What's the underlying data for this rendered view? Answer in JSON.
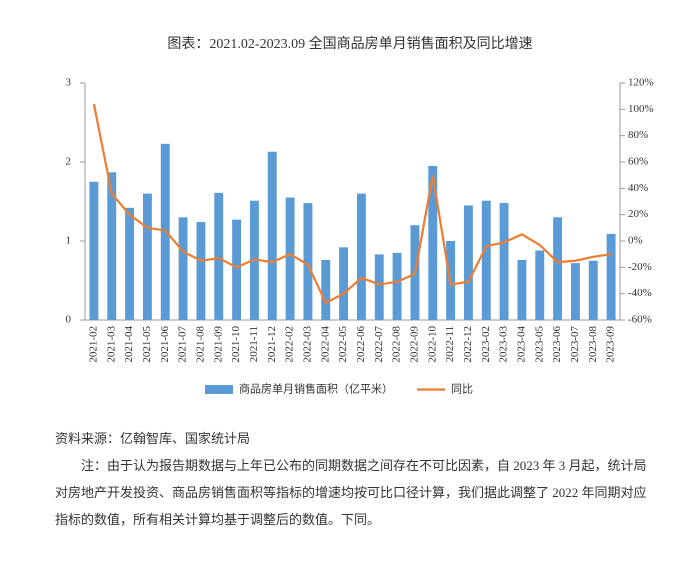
{
  "chart_data": {
    "type": "bar-line",
    "title": "图表：2021.02-2023.09 全国商品房单月销售面积及同比增速",
    "categories": [
      "2021-02",
      "2021-03",
      "2021-04",
      "2021-05",
      "2021-06",
      "2021-07",
      "2021-08",
      "2021-09",
      "2021-10",
      "2021-11",
      "2021-12",
      "2022-02",
      "2022-03",
      "2022-04",
      "2022-05",
      "2022-06",
      "2022-07",
      "2022-08",
      "2022-09",
      "2022-10",
      "2022-11",
      "2022-12",
      "2023-02",
      "2023-03",
      "2023-04",
      "2023-05",
      "2023-06",
      "2023-07",
      "2023-08",
      "2023-09"
    ],
    "series": [
      {
        "name": "商品房单月销售面积（亿平米）",
        "type": "bar",
        "color": "#5b9bd5",
        "values": [
          1.75,
          1.87,
          1.42,
          1.6,
          2.23,
          1.3,
          1.24,
          1.61,
          1.27,
          1.51,
          2.13,
          1.55,
          1.48,
          0.76,
          0.92,
          1.6,
          0.83,
          0.85,
          1.2,
          1.95,
          1.0,
          1.45,
          1.51,
          1.48,
          0.76,
          0.88,
          1.3,
          0.72,
          0.75,
          1.09
        ]
      },
      {
        "name": "同比",
        "type": "line",
        "axis": "y2",
        "color": "#ed7d31",
        "values": [
          104,
          36,
          20,
          10,
          8,
          -8,
          -15,
          -13,
          -20,
          -14,
          -16,
          -10,
          -18,
          -47,
          -40,
          -28,
          -33,
          -31,
          -25,
          50,
          -33,
          -31,
          -4,
          -1,
          5,
          -3,
          -16,
          -15,
          -12,
          -10
        ]
      }
    ],
    "ylim": [
      0,
      3
    ],
    "yticks": [
      0,
      1,
      2,
      3
    ],
    "y2lim": [
      -60,
      120
    ],
    "y2ticks": [
      {
        "value": -60,
        "label": "-60%"
      },
      {
        "value": -40,
        "label": "-40%"
      },
      {
        "value": -20,
        "label": "-20%"
      },
      {
        "value": 0,
        "label": "0%"
      },
      {
        "value": 20,
        "label": "20%"
      },
      {
        "value": 40,
        "label": "40%"
      },
      {
        "value": 60,
        "label": "60%"
      },
      {
        "value": 80,
        "label": "80%"
      },
      {
        "value": 100,
        "label": "100%"
      },
      {
        "value": 120,
        "label": "120%"
      }
    ]
  },
  "notes": {
    "source": "资料来源：亿翰智库、国家统计局",
    "note": "注：由于认为报告期数据与上年已公布的同期数据之间存在不可比因素，自 2023 年 3 月起，统计局对房地产开发投资、商品房销售面积等指标的增速均按可比口径计算，我们据此调整了 2022 年同期对应指标的数值，所有相关计算均基于调整后的数值。下同。"
  }
}
